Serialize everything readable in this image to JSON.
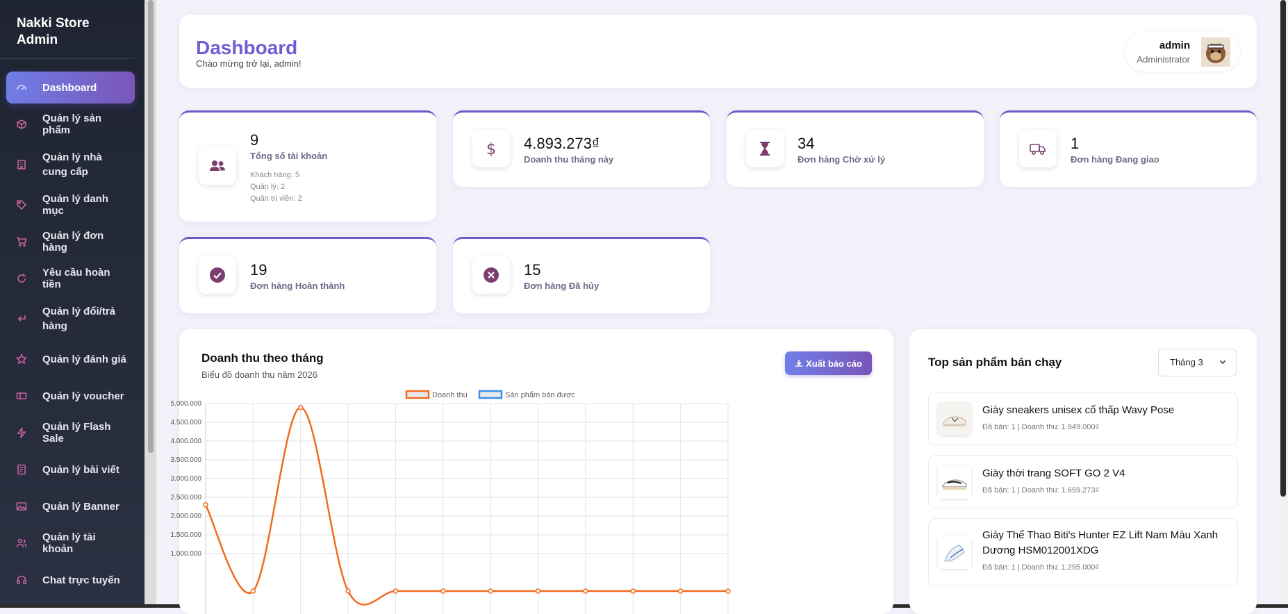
{
  "sidebar": {
    "brand": "Nakki Store Admin",
    "items": [
      {
        "label": "Dashboard",
        "icon": "speedometer-icon"
      },
      {
        "label": "Quản lý sản phẩm",
        "icon": "box-icon"
      },
      {
        "label": "Quản lý nhà cung cấp",
        "icon": "building-icon"
      },
      {
        "label": "Quản lý danh mục",
        "icon": "tag-icon"
      },
      {
        "label": "Quản lý đơn hàng",
        "icon": "cart-icon"
      },
      {
        "label": "Yêu cầu hoàn tiền",
        "icon": "refresh-icon"
      },
      {
        "label": "Quản lý đổi/trả hàng",
        "icon": "return-arrow-icon"
      },
      {
        "label": "Quản lý đánh giá",
        "icon": "star-icon"
      },
      {
        "label": "Quản lý voucher",
        "icon": "ticket-icon"
      },
      {
        "label": "Quản lý Flash Sale",
        "icon": "lightning-icon"
      },
      {
        "label": "Quản lý bài viết",
        "icon": "document-icon"
      },
      {
        "label": "Quản lý Banner",
        "icon": "image-icon"
      },
      {
        "label": "Quản lý tài khoản",
        "icon": "users-icon"
      },
      {
        "label": "Chat trực tuyến",
        "icon": "headset-icon"
      }
    ]
  },
  "header": {
    "title": "Dashboard",
    "subtitle": "Chào mừng trở lại, admin!",
    "user_name": "admin",
    "user_role": "Administrator"
  },
  "stats": {
    "accounts": {
      "value": "9",
      "label": "Tổng số tài khoản",
      "details": [
        "Khách hàng: 5",
        "Quản lý: 2",
        "Quản trị viên: 2"
      ]
    },
    "revenue": {
      "value": "4.893.273₫",
      "label": "Doanh thu tháng này"
    },
    "pending": {
      "value": "34",
      "label": "Đơn hàng Chờ xử lý"
    },
    "shipping": {
      "value": "1",
      "label": "Đơn hàng Đang giao"
    },
    "completed": {
      "value": "19",
      "label": "Đơn hàng Hoàn thành"
    },
    "cancelled": {
      "value": "15",
      "label": "Đơn hàng Đã hủy"
    }
  },
  "chart_panel": {
    "title": "Doanh thu theo tháng",
    "subtitle": "Biểu đồ doanh thu năm 2026",
    "export_label": "Xuất báo cáo"
  },
  "chart_data": {
    "type": "line",
    "title": "",
    "xlabel": "",
    "ylabel": "",
    "ylim": [
      0,
      5000000
    ],
    "y_ticks": [
      "1.000.000",
      "1.500.000",
      "2.000.000",
      "2.500.000",
      "3.000.000",
      "3.500.000",
      "4.000.000",
      "4.500.000",
      "5.000.000"
    ],
    "legend_position": "top",
    "series": [
      {
        "name": "Doanh thu",
        "color": "#f26a1b",
        "values": [
          2300000,
          0,
          4893273,
          0,
          0,
          0,
          0,
          0,
          0,
          0,
          0,
          0
        ]
      },
      {
        "name": "Sản phẩm bán được",
        "color": "#3a8ee8",
        "values": []
      }
    ]
  },
  "top_products": {
    "title": "Top sản phẩm bán chạy",
    "month": "Tháng 3",
    "items": [
      {
        "name": "Giày sneakers unisex cổ thấp Wavy Pose",
        "info": "Đã bán: 1 | Doanh thu: 1.949.000₫"
      },
      {
        "name": "Giày thời trang SOFT GO 2 V4",
        "info": "Đã bán: 1 | Doanh thu: 1.659.273₫"
      },
      {
        "name": "Giày Thể Thao Biti's Hunter EZ Lift Nam Màu Xanh Dương HSM012001XDG",
        "info": "Đã bán: 1 | Doanh thu: 1.295.000₫"
      }
    ]
  }
}
